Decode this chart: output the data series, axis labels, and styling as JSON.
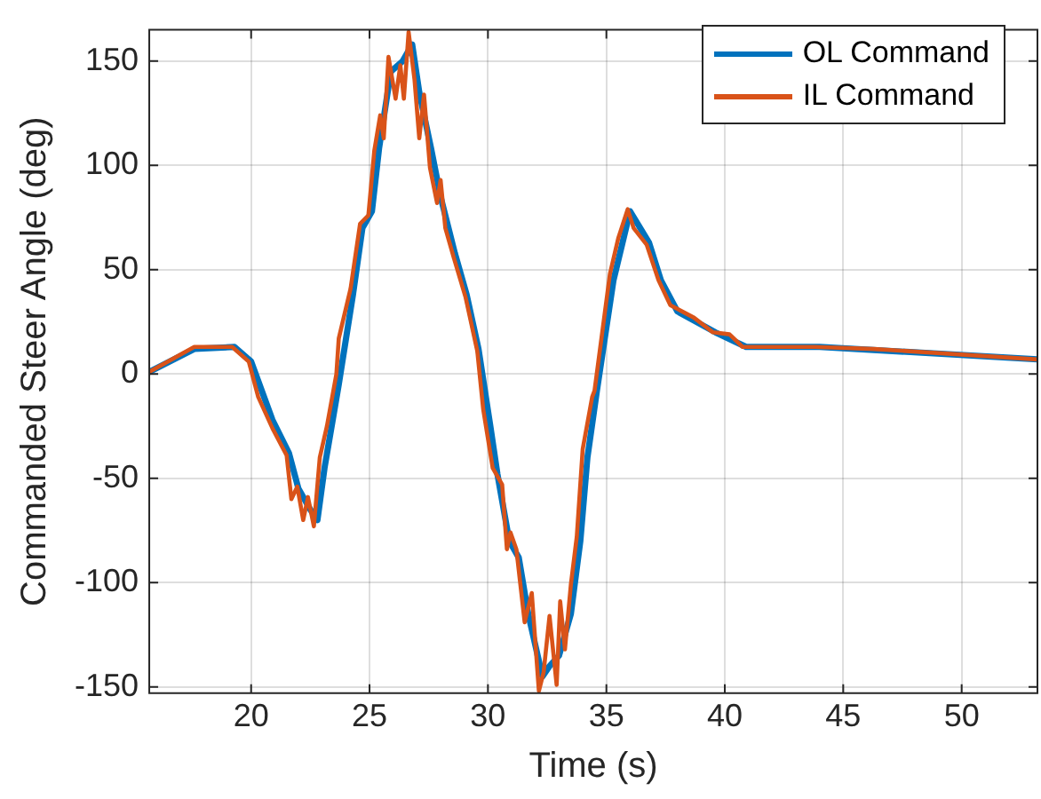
{
  "chart_data": {
    "type": "line",
    "xlabel": "Time (s)",
    "ylabel": "Commanded Steer Angle (deg)",
    "xlim": [
      15.7,
      53.2
    ],
    "xticks": [
      20,
      25,
      30,
      35,
      40,
      45,
      50
    ],
    "ylim": [
      -153,
      165
    ],
    "yticks": [
      -150,
      -100,
      -50,
      0,
      50,
      100,
      150
    ],
    "grid": true,
    "legend": "top right",
    "marker": "none",
    "line_style": "solid",
    "series": [
      {
        "name": "OL Command",
        "color": "#0072bd",
        "x": [
          15.7,
          17.6,
          19.3,
          20.0,
          20.9,
          21.6,
          22.0,
          22.5,
          22.8,
          23.1,
          23.7,
          24.3,
          24.7,
          25.1,
          25.4,
          25.9,
          26.4,
          26.8,
          27.1,
          27.6,
          28.0,
          28.6,
          29.1,
          29.6,
          30.1,
          30.4,
          30.9,
          31.3,
          31.7,
          32.3,
          32.6,
          33.0,
          33.5,
          33.9,
          34.2,
          34.6,
          35.3,
          36.0,
          36.8,
          37.3,
          38.0,
          39.6,
          40.9,
          44,
          53.2
        ],
        "values": [
          1,
          12,
          13,
          6,
          -22,
          -38,
          -55,
          -65,
          -70,
          -45,
          -5,
          38,
          70,
          78,
          108,
          145,
          150,
          158,
          135,
          108,
          85,
          58,
          38,
          12,
          -25,
          -48,
          -80,
          -88,
          -115,
          -145,
          -140,
          -135,
          -115,
          -80,
          -40,
          -8,
          45,
          78,
          63,
          45,
          30,
          20,
          13,
          13,
          7
        ]
      },
      {
        "name": "IL Command",
        "color": "#d95319",
        "x": [
          15.7,
          17.6,
          19.2,
          19.9,
          20.3,
          20.9,
          21.5,
          21.7,
          21.95,
          22.2,
          22.4,
          22.65,
          22.9,
          23.2,
          23.6,
          23.7,
          24.2,
          24.6,
          24.95,
          25.2,
          25.45,
          25.6,
          25.8,
          26.1,
          26.3,
          26.45,
          26.65,
          26.9,
          27.1,
          27.3,
          27.55,
          27.85,
          28.0,
          28.2,
          28.55,
          29.05,
          29.55,
          29.8,
          30.2,
          30.6,
          30.8,
          30.95,
          31.2,
          31.55,
          31.85,
          32.15,
          32.35,
          32.6,
          32.9,
          33.05,
          33.25,
          33.5,
          33.75,
          34.0,
          34.4,
          34.5,
          35.15,
          35.5,
          35.9,
          36.15,
          36.7,
          37.2,
          37.7,
          38.7,
          39.5,
          40.2,
          40.75,
          43.8,
          46.3,
          53.2
        ],
        "values": [
          1,
          13,
          13,
          6,
          -11,
          -26,
          -39,
          -60,
          -54,
          -70,
          -59,
          -73,
          -40,
          -25,
          0,
          17,
          41,
          72,
          76,
          107,
          124,
          113,
          152,
          132,
          148,
          132,
          164,
          141,
          113,
          134,
          99,
          82,
          93,
          70,
          56,
          37,
          11,
          -17,
          -45,
          -53,
          -84,
          -76,
          -84,
          -119,
          -105,
          -152,
          -143,
          -116,
          -149,
          -109,
          -132,
          -101,
          -78,
          -36,
          -11,
          -8,
          48,
          65,
          79,
          70,
          62,
          45,
          33,
          27,
          20,
          19,
          13,
          13,
          12,
          7
        ]
      }
    ]
  }
}
